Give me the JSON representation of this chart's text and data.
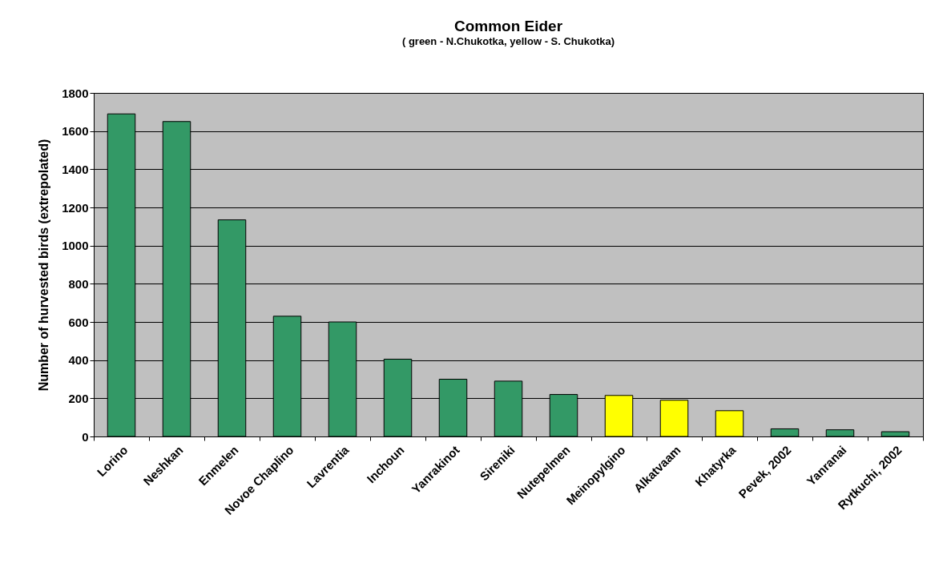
{
  "chart_data": {
    "type": "bar",
    "title": "Common Eider",
    "subtitle": "( green - N.Chukotka, yellow - S. Chukotka)",
    "ylabel": "Number of hurvested birds (extrepolated)",
    "categories": [
      "Lorino",
      "Neshkan",
      "Enmelen",
      "Novoe Chaplino",
      "Lavrentia",
      "Inchoun",
      "Yanrakinot",
      "Sireniki",
      "Nutepelmen",
      "Meinopylgino",
      "Alkatvaam",
      "Khatyrka",
      "Pevek, 2002",
      "Yanranai",
      "Rytkuchi, 2002"
    ],
    "values": [
      1690,
      1650,
      1135,
      630,
      600,
      405,
      300,
      290,
      220,
      215,
      190,
      135,
      40,
      35,
      25
    ],
    "colors": [
      "#339966",
      "#339966",
      "#339966",
      "#339966",
      "#339966",
      "#339966",
      "#339966",
      "#339966",
      "#339966",
      "#ffff00",
      "#ffff00",
      "#ffff00",
      "#339966",
      "#339966",
      "#339966"
    ],
    "ylim": [
      0,
      1800
    ],
    "yticks": [
      0,
      200,
      400,
      600,
      800,
      1000,
      1200,
      1400,
      1600,
      1800
    ],
    "grid": "y"
  }
}
